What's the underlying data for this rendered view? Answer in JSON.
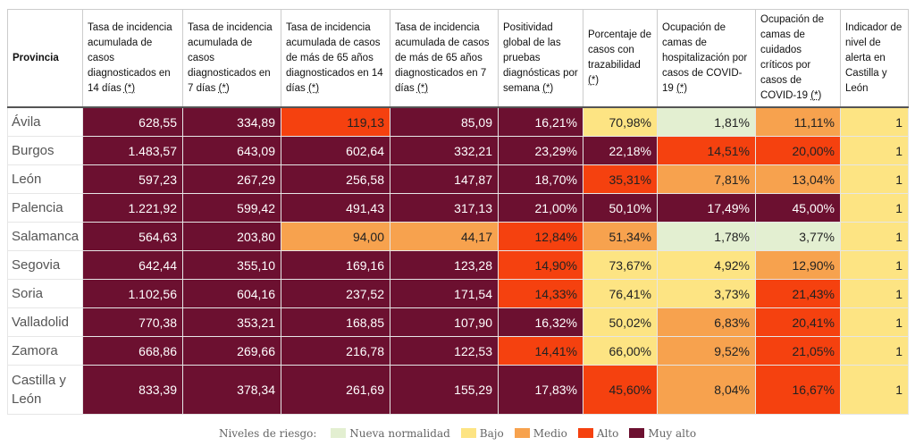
{
  "table": {
    "headers": [
      {
        "text": "Provincia"
      },
      {
        "text": "Tasa de incidencia acumulada de casos diagnosticados en 14 días",
        "note": "(*)"
      },
      {
        "text": "Tasa de incidencia acumulada de casos diagnosticados en 7 días",
        "note": "(*)"
      },
      {
        "text": "Tasa de incidencia acumulada de casos de más de 65 años diagnosticados en 14 días",
        "note": "(*)"
      },
      {
        "text": "Tasa de incidencia acumulada de casos de más de 65 años diagnosticados en 7 días",
        "note": "(*)"
      },
      {
        "text": "Positividad global de las pruebas diagnósticas por semana",
        "note": "(*)"
      },
      {
        "text": "Porcentaje de casos con trazabilidad",
        "note": "(*)"
      },
      {
        "text": "Ocupación de camas de hospitalización por casos de COVID-19",
        "note": "(*)"
      },
      {
        "text": "Ocupación de camas de cuidados críticos por casos de COVID-19",
        "note": "(*)"
      },
      {
        "text": "Indicador de nivel de alerta en Castilla y León"
      }
    ],
    "rows": [
      {
        "province": "Ávila",
        "cells": [
          {
            "text": "628,55",
            "color": "#6c1030"
          },
          {
            "text": "334,89",
            "color": "#6c1030"
          },
          {
            "text": "119,13",
            "color": "#f5410f"
          },
          {
            "text": "85,09",
            "color": "#6c1030"
          },
          {
            "text": "16,21%",
            "color": "#6c1030"
          },
          {
            "text": "70,98%",
            "color": "#fde483"
          },
          {
            "text": "1,81%",
            "color": "#e3efd1"
          },
          {
            "text": "11,11%",
            "color": "#f7a24e"
          },
          {
            "text": "1",
            "color": "#fde483"
          }
        ]
      },
      {
        "province": "Burgos",
        "cells": [
          {
            "text": "1.483,57",
            "color": "#6c1030"
          },
          {
            "text": "643,09",
            "color": "#6c1030"
          },
          {
            "text": "602,64",
            "color": "#6c1030"
          },
          {
            "text": "332,21",
            "color": "#6c1030"
          },
          {
            "text": "23,29%",
            "color": "#6c1030"
          },
          {
            "text": "22,18%",
            "color": "#6c1030"
          },
          {
            "text": "14,51%",
            "color": "#f5410f"
          },
          {
            "text": "20,00%",
            "color": "#f5410f"
          },
          {
            "text": "1",
            "color": "#fde483"
          }
        ]
      },
      {
        "province": "León",
        "cells": [
          {
            "text": "597,23",
            "color": "#6c1030"
          },
          {
            "text": "267,29",
            "color": "#6c1030"
          },
          {
            "text": "256,58",
            "color": "#6c1030"
          },
          {
            "text": "147,87",
            "color": "#6c1030"
          },
          {
            "text": "18,70%",
            "color": "#6c1030"
          },
          {
            "text": "35,31%",
            "color": "#f5410f"
          },
          {
            "text": "7,81%",
            "color": "#f7a24e"
          },
          {
            "text": "13,04%",
            "color": "#f7a24e"
          },
          {
            "text": "1",
            "color": "#fde483"
          }
        ]
      },
      {
        "province": "Palencia",
        "cells": [
          {
            "text": "1.221,92",
            "color": "#6c1030"
          },
          {
            "text": "599,42",
            "color": "#6c1030"
          },
          {
            "text": "491,43",
            "color": "#6c1030"
          },
          {
            "text": "317,13",
            "color": "#6c1030"
          },
          {
            "text": "21,00%",
            "color": "#6c1030"
          },
          {
            "text": "50,10%",
            "color": "#6c1030"
          },
          {
            "text": "17,49%",
            "color": "#6c1030"
          },
          {
            "text": "45,00%",
            "color": "#6c1030"
          },
          {
            "text": "1",
            "color": "#fde483"
          }
        ]
      },
      {
        "province": "Salamanca",
        "cells": [
          {
            "text": "564,63",
            "color": "#6c1030"
          },
          {
            "text": "203,80",
            "color": "#6c1030"
          },
          {
            "text": "94,00",
            "color": "#f7a24e"
          },
          {
            "text": "44,17",
            "color": "#f7a24e"
          },
          {
            "text": "12,84%",
            "color": "#f5410f"
          },
          {
            "text": "51,34%",
            "color": "#f7a24e"
          },
          {
            "text": "1,78%",
            "color": "#e3efd1"
          },
          {
            "text": "3,77%",
            "color": "#e3efd1"
          },
          {
            "text": "1",
            "color": "#fde483"
          }
        ]
      },
      {
        "province": "Segovia",
        "cells": [
          {
            "text": "642,44",
            "color": "#6c1030"
          },
          {
            "text": "355,10",
            "color": "#6c1030"
          },
          {
            "text": "169,16",
            "color": "#6c1030"
          },
          {
            "text": "123,28",
            "color": "#6c1030"
          },
          {
            "text": "14,90%",
            "color": "#f5410f"
          },
          {
            "text": "73,67%",
            "color": "#fde483"
          },
          {
            "text": "4,92%",
            "color": "#fde483"
          },
          {
            "text": "12,90%",
            "color": "#f7a24e"
          },
          {
            "text": "1",
            "color": "#fde483"
          }
        ]
      },
      {
        "province": "Soria",
        "cells": [
          {
            "text": "1.102,56",
            "color": "#6c1030"
          },
          {
            "text": "604,16",
            "color": "#6c1030"
          },
          {
            "text": "237,52",
            "color": "#6c1030"
          },
          {
            "text": "171,54",
            "color": "#6c1030"
          },
          {
            "text": "14,33%",
            "color": "#f5410f"
          },
          {
            "text": "76,41%",
            "color": "#fde483"
          },
          {
            "text": "3,73%",
            "color": "#fde483"
          },
          {
            "text": "21,43%",
            "color": "#f5410f"
          },
          {
            "text": "1",
            "color": "#fde483"
          }
        ]
      },
      {
        "province": "Valladolid",
        "cells": [
          {
            "text": "770,38",
            "color": "#6c1030"
          },
          {
            "text": "353,21",
            "color": "#6c1030"
          },
          {
            "text": "168,85",
            "color": "#6c1030"
          },
          {
            "text": "107,90",
            "color": "#6c1030"
          },
          {
            "text": "16,32%",
            "color": "#6c1030"
          },
          {
            "text": "50,02%",
            "color": "#fde483"
          },
          {
            "text": "6,83%",
            "color": "#f7a24e"
          },
          {
            "text": "20,41%",
            "color": "#f5410f"
          },
          {
            "text": "1",
            "color": "#fde483"
          }
        ]
      },
      {
        "province": "Zamora",
        "cells": [
          {
            "text": "668,86",
            "color": "#6c1030"
          },
          {
            "text": "269,66",
            "color": "#6c1030"
          },
          {
            "text": "216,78",
            "color": "#6c1030"
          },
          {
            "text": "122,53",
            "color": "#6c1030"
          },
          {
            "text": "14,41%",
            "color": "#f5410f"
          },
          {
            "text": "66,00%",
            "color": "#fde483"
          },
          {
            "text": "9,52%",
            "color": "#f7a24e"
          },
          {
            "text": "21,05%",
            "color": "#f5410f"
          },
          {
            "text": "1",
            "color": "#fde483"
          }
        ]
      },
      {
        "province": "Castilla y León",
        "cells": [
          {
            "text": "833,39",
            "color": "#6c1030"
          },
          {
            "text": "378,34",
            "color": "#6c1030"
          },
          {
            "text": "261,69",
            "color": "#6c1030"
          },
          {
            "text": "155,29",
            "color": "#6c1030"
          },
          {
            "text": "17,83%",
            "color": "#6c1030"
          },
          {
            "text": "45,60%",
            "color": "#f5410f"
          },
          {
            "text": "8,04%",
            "color": "#f7a24e"
          },
          {
            "text": "16,67%",
            "color": "#f5410f"
          },
          {
            "text": "1",
            "color": "#fde483"
          }
        ]
      }
    ]
  },
  "legend": {
    "title": "Niveles de riesgo:",
    "items": [
      {
        "label": "Nueva normalidad",
        "color": "#e3efd1"
      },
      {
        "label": "Bajo",
        "color": "#fde483"
      },
      {
        "label": "Medio",
        "color": "#f7a24e"
      },
      {
        "label": "Alto",
        "color": "#f5410f"
      },
      {
        "label": "Muy alto",
        "color": "#6c1030"
      }
    ]
  }
}
